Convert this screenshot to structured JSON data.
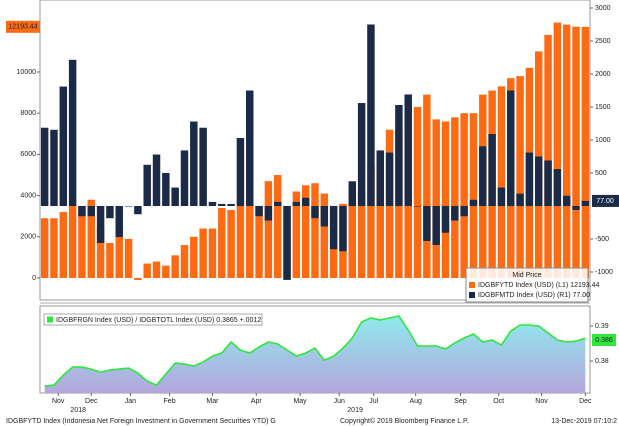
{
  "chart_data": [
    {
      "type": "bar",
      "categories": [
        null,
        null,
        null,
        null,
        null,
        null,
        null,
        null,
        null,
        null,
        null,
        null,
        null,
        null,
        null,
        null,
        null,
        null,
        null,
        null,
        null,
        null,
        null,
        null,
        null,
        null,
        null,
        null,
        null,
        null,
        null,
        null,
        null,
        null,
        null,
        null,
        null,
        null,
        null,
        null,
        null,
        null,
        null,
        null,
        null,
        null,
        null,
        null,
        null,
        null,
        null,
        null,
        null,
        null,
        null,
        null,
        null,
        null,
        null
      ],
      "series": [
        {
          "name": "IDGBFYTD Index (USD) (L1) 12193.44",
          "color": "#fc6b14",
          "axis": "y",
          "values": [
            2900,
            2900,
            3200,
            3500,
            3500,
            3800,
            2400,
            1700,
            2000,
            1900,
            -100,
            700,
            800,
            600,
            1100,
            1600,
            2000,
            2400,
            2400,
            3400,
            3300,
            3500,
            3500,
            3500,
            4700,
            5000,
            3500,
            4200,
            4500,
            4600,
            4100,
            3500,
            3600,
            4000,
            4200,
            5500,
            6000,
            7200,
            7200,
            8600,
            8300,
            8900,
            7700,
            7600,
            7800,
            8000,
            8000,
            8900,
            9100,
            9300,
            9700,
            9800,
            10200,
            11000,
            11800,
            12400,
            12300,
            12200,
            12193.44
          ]
        },
        {
          "name": "IDGBFMTD Index (USD) (R1) 77.00",
          "color": "#1b2a47",
          "axis": "y2",
          "values": [
            1186,
            1155,
            1810,
            2215,
            -155,
            -155,
            -560,
            -185,
            -470,
            0,
            -125,
            624,
            780,
            500,
            280,
            842,
            1280,
            1186,
            62,
            31,
            31,
            1030,
            1750,
            -155,
            -220,
            62,
            -1120,
            62,
            125,
            -185,
            -310,
            -655,
            -686,
            375,
            1560,
            2750,
            842,
            810,
            1530,
            1690,
            0,
            -530,
            -590,
            -405,
            -220,
            -155,
            94,
            905,
            1090,
            280,
            1750,
            187,
            810,
            750,
            690,
            560,
            155,
            -60,
            77
          ]
        }
      ],
      "ylim": [
        -1068,
        13495
      ],
      "yticks": [
        0,
        2000,
        4000,
        6000,
        8000,
        10000
      ],
      "y2lim": [
        -1424,
        3121
      ],
      "y2ticks": [
        -1000,
        -500,
        500,
        1000,
        1500,
        2000,
        2500,
        3000
      ],
      "legend_title": "Mid Price",
      "legend": "lower right",
      "annotations": [
        {
          "label": "12193.44",
          "value": 12193.44,
          "axis": "y",
          "color": "#fc6b14"
        },
        {
          "label": "77.00",
          "value": 77,
          "axis": "y2",
          "color": "#1b2a47"
        }
      ]
    },
    {
      "type": "area",
      "categories": [
        null,
        null,
        null,
        null,
        null,
        null,
        null,
        null,
        null,
        null,
        null,
        null,
        null,
        null,
        null,
        null,
        null,
        null,
        null,
        null,
        null,
        null,
        null,
        null,
        null,
        null,
        null,
        null,
        null,
        null,
        null,
        null,
        null,
        null,
        null,
        null,
        null,
        null,
        null,
        null,
        null,
        null,
        null,
        null,
        null,
        null,
        null,
        null,
        null,
        null,
        null,
        null,
        null,
        null,
        null,
        null,
        null,
        null,
        null
      ],
      "series": [
        {
          "name": "IDGBFRGN Index (USD) / IDGBTOTL Index (USD)  0.3865 +.0012",
          "color": "#2ee63c",
          "values": [
            0.37286,
            0.37314,
            0.376,
            0.37829,
            0.37829,
            0.37771,
            0.37686,
            0.37743,
            0.37771,
            0.378,
            0.37657,
            0.37429,
            0.37314,
            0.37629,
            0.37943,
            0.37914,
            0.37857,
            0.37971,
            0.38143,
            0.38229,
            0.38543,
            0.38314,
            0.38229,
            0.384,
            0.38543,
            0.38486,
            0.38314,
            0.38143,
            0.38229,
            0.38371,
            0.38029,
            0.38143,
            0.38371,
            0.38657,
            0.39114,
            0.39229,
            0.39171,
            0.39229,
            0.39286,
            0.38886,
            0.38429,
            0.38429,
            0.38429,
            0.38343,
            0.38514,
            0.38657,
            0.38771,
            0.38543,
            0.386,
            0.38457,
            0.38857,
            0.39029,
            0.39029,
            0.39,
            0.388,
            0.386,
            0.38543,
            0.38571,
            0.3865
          ]
        }
      ],
      "ylim": [
        0.3709,
        0.3957
      ],
      "yticks": [
        0.39,
        0.38
      ],
      "legend": "upper left",
      "annotations": [
        {
          "label": "0.386",
          "value": 0.386,
          "color": "#2ee63c"
        }
      ],
      "xticks": [
        {
          "value": 1.45,
          "label": "Nov"
        },
        {
          "value": 5.0,
          "label": "Dec"
        },
        {
          "value": 9.2,
          "label": "Jan"
        },
        {
          "value": 13.4,
          "label": "Feb"
        },
        {
          "value": 18.0,
          "label": "Mar"
        },
        {
          "value": 22.7,
          "label": "Apr"
        },
        {
          "value": 27.4,
          "label": "May"
        },
        {
          "value": 31.6,
          "label": "Jun"
        },
        {
          "value": 35.3,
          "label": "Jul"
        },
        {
          "value": 39.8,
          "label": "Aug"
        },
        {
          "value": 44.6,
          "label": "Sep"
        },
        {
          "value": 48.7,
          "label": "Oct"
        },
        {
          "value": 53.3,
          "label": "Nov"
        },
        {
          "value": 58.0,
          "label": "Dec"
        }
      ],
      "xticks2": [
        {
          "value": 3.6,
          "label": "2018"
        },
        {
          "value": 33.3,
          "label": "2019"
        }
      ]
    }
  ],
  "footer": {
    "description": "IDGBFYTD Index (Indonesia Net Foreign Investment in Government Securities YTD) G",
    "copyright": "Copyright© 2019 Bloomberg Finance L.P.",
    "timestamp": "13-Dec-2019 07:10:2"
  }
}
